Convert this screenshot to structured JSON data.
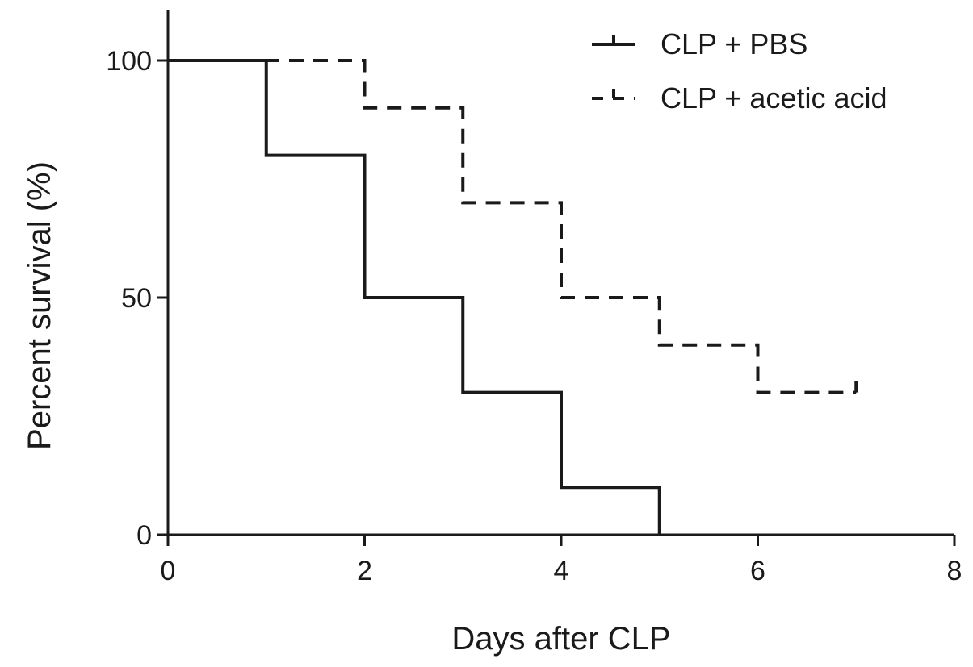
{
  "chart_data": {
    "type": "line",
    "title": "",
    "xlabel": "Days after CLP",
    "ylabel": "Percent survival (%)",
    "xlim": [
      0,
      8
    ],
    "ylim": [
      0,
      100
    ],
    "xticks": [
      0,
      2,
      4,
      6,
      8
    ],
    "yticks": [
      0,
      50,
      100
    ],
    "grid": false,
    "legend_position": "top-right",
    "step": true,
    "series": [
      {
        "name": "CLP + PBS",
        "style": "solid",
        "color": "#1a1a1a",
        "x": [
          0,
          1,
          2,
          3,
          4,
          5
        ],
        "y": [
          100,
          80,
          50,
          30,
          10,
          0
        ],
        "end_x": 5
      },
      {
        "name": "CLP + acetic acid",
        "style": "dashed",
        "color": "#1a1a1a",
        "x": [
          0,
          2,
          3,
          4,
          5,
          6
        ],
        "y": [
          100,
          90,
          70,
          50,
          40,
          30
        ],
        "end_x": 7
      }
    ]
  }
}
